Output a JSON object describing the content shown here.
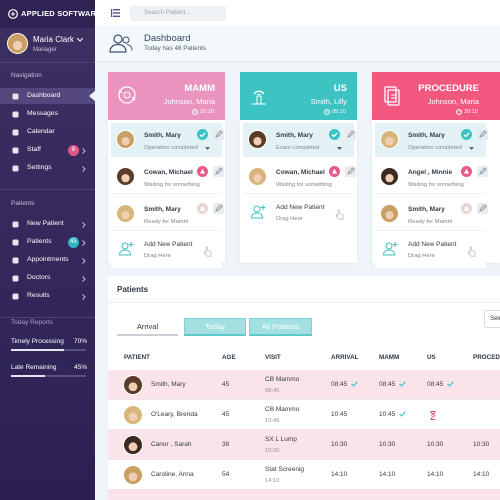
{
  "sidebar": {
    "brand": "APPLIED SOFTWARE",
    "user": {
      "name": "Maria Clark",
      "role": "Manager"
    },
    "sections": [
      {
        "title": "Navigation",
        "items": [
          {
            "label": "Dashboard"
          },
          {
            "label": "Messages"
          },
          {
            "label": "Calendar"
          },
          {
            "label": "Staff",
            "badge": 8
          },
          {
            "label": "Settings"
          }
        ]
      },
      {
        "title": "Patients",
        "items": [
          {
            "label": "New Patient"
          },
          {
            "label": "Patients",
            "badge": 45
          },
          {
            "label": "Appointments"
          },
          {
            "label": "Doctors"
          },
          {
            "label": "Results"
          }
        ]
      }
    ],
    "reports": {
      "title": "Today Reports",
      "items": [
        {
          "label": "Timely Processing",
          "value": 70,
          "value_label": "70%"
        },
        {
          "label": "Late Remaining",
          "value": 45,
          "value_label": "45%"
        }
      ]
    }
  },
  "search": {
    "placeholder": "Search Patient..."
  },
  "header": {
    "title": "Dashboard",
    "subtitle": "Today has 48 Patients"
  },
  "columns": [
    {
      "title": "MAMM",
      "name": "Johnson, Maria",
      "time": "15:10",
      "color": "#ea93bf",
      "cards": [
        {
          "name": "Smith, Mary",
          "status": "Operation completed"
        },
        {
          "name": "Cowan, Michael",
          "status": "Waiting for something"
        },
        {
          "name": "Smith, Mary",
          "status": "Ready for Mamm"
        }
      ],
      "add": {
        "label": "Add New Patient",
        "hint": "Drag Here"
      }
    },
    {
      "title": "US",
      "name": "Smith, Lilly",
      "time": "05:10",
      "color": "#3ec3c3",
      "cards": [
        {
          "name": "Smith, Mary",
          "status": "Exam completed"
        },
        {
          "name": "Cowan, Michael",
          "status": "Waiting for something"
        }
      ],
      "add": {
        "label": "Add New Patient",
        "hint": "Drag Here"
      }
    },
    {
      "title": "PROCEDURE",
      "name": "Johnson, Maria",
      "time": "20:10",
      "color": "#f25780",
      "cards": [
        {
          "name": "Smith, Mary",
          "status": "Operation completed"
        },
        {
          "name": "Angel , Minnie",
          "status": "Waiting for something"
        },
        {
          "name": "Smith, Mary",
          "status": "Ready for Mamm"
        }
      ],
      "add": {
        "label": "Add New Patient",
        "hint": "Drag Here"
      }
    }
  ],
  "patients": {
    "title": "Patients",
    "tabs": [
      "Arrival",
      "Today",
      "All Patients"
    ],
    "select": "Select",
    "headers": [
      "PATIENT",
      "AGE",
      "VISIT",
      "ARRIVAL",
      "MAMM",
      "US",
      "PROCEDURE"
    ],
    "rows": [
      {
        "patient": "Smith, Mary",
        "age": 45,
        "visit": "CB Mammo",
        "visit_time": "08:45",
        "arrival": "08:45",
        "mamm": "08:45",
        "us": "08:45"
      },
      {
        "patient": "O'Leary, Brenda",
        "age": 45,
        "visit": "CB Mammo",
        "visit_time": "10:45",
        "arrival": "10:45",
        "mamm": "10:45"
      },
      {
        "patient": "Canor , Sarah",
        "age": 38,
        "visit": "SX L Lump",
        "visit_time": "10:30",
        "arrival": "10:30",
        "mamm": "10:30",
        "us": "10:30",
        "procedure": "10:30"
      },
      {
        "patient": "Caroline, Anna",
        "age": 54,
        "visit": "Stat Screenig",
        "visit_time": "14:10",
        "arrival": "14:10",
        "mamm": "14:10",
        "us": "14:10",
        "procedure": "14:10"
      }
    ]
  }
}
